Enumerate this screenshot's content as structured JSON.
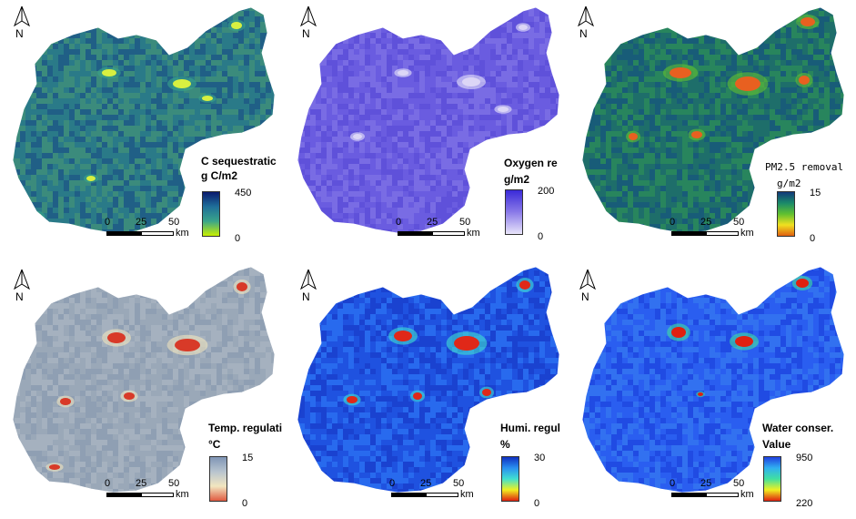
{
  "north_label": "N",
  "scalebar": {
    "ticks": [
      "0",
      "25",
      "50"
    ],
    "unit": "km"
  },
  "panels": [
    {
      "id": "carbon",
      "title": "C sequestratic",
      "unit": "g C/m2",
      "max": "450",
      "min": "0",
      "ramp_colors": [
        "#0a1a6e",
        "#1f6f9a",
        "#3aa58a",
        "#c8f000"
      ],
      "base_colors": [
        "#2a7a88",
        "#3e8e7a",
        "#1e5a86"
      ],
      "hotspot_color": "#d8f040"
    },
    {
      "id": "oxygen",
      "title": "Oxygen re",
      "unit": "g/m2",
      "max": "200",
      "min": "0",
      "ramp_colors": [
        "#3a2ad8",
        "#8a7ae8",
        "#e8e4fa"
      ],
      "base_colors": [
        "#6a5ce0",
        "#7b6ee4",
        "#5d4fd8"
      ],
      "hotspot_color": "#dcd6f6"
    },
    {
      "id": "pm25",
      "title": "PM2.5 removal",
      "unit": "g/m2",
      "max": "15",
      "min": "0",
      "ramp_colors": [
        "#123a7a",
        "#1a8a6a",
        "#60c030",
        "#f0e020",
        "#e06010"
      ],
      "base_colors": [
        "#1e6e6a",
        "#2a8a5a",
        "#17597a"
      ],
      "hotspot_color": "#e86020"
    },
    {
      "id": "temp",
      "title": "Temp. regulati",
      "unit": "°C",
      "max": "15",
      "min": "0",
      "ramp_colors": [
        "#7f95b5",
        "#b8c4cf",
        "#f2e6c0",
        "#e05a40"
      ],
      "base_colors": [
        "#9aa8b8",
        "#a7b3c0",
        "#8d9db2"
      ],
      "hotspot_color": "#d83a28"
    },
    {
      "id": "humi",
      "title": "Humi. regul",
      "unit": "%",
      "max": "30",
      "min": "0",
      "ramp_colors": [
        "#1030c0",
        "#2a90f0",
        "#40e0d0",
        "#f0f020",
        "#e02010"
      ],
      "base_colors": [
        "#1f52e0",
        "#2a6ef0",
        "#1a40cc"
      ],
      "hotspot_color": "#e02818"
    },
    {
      "id": "water",
      "title": "Water conser.",
      "unit": "Value",
      "max": "950",
      "min": "220",
      "ramp_colors": [
        "#2040e0",
        "#30b0f0",
        "#40e0a0",
        "#f0f020",
        "#e02010"
      ],
      "base_colors": [
        "#2a5ef0",
        "#3474f0",
        "#1f48e0"
      ],
      "hotspot_color": "#e02010"
    }
  ]
}
